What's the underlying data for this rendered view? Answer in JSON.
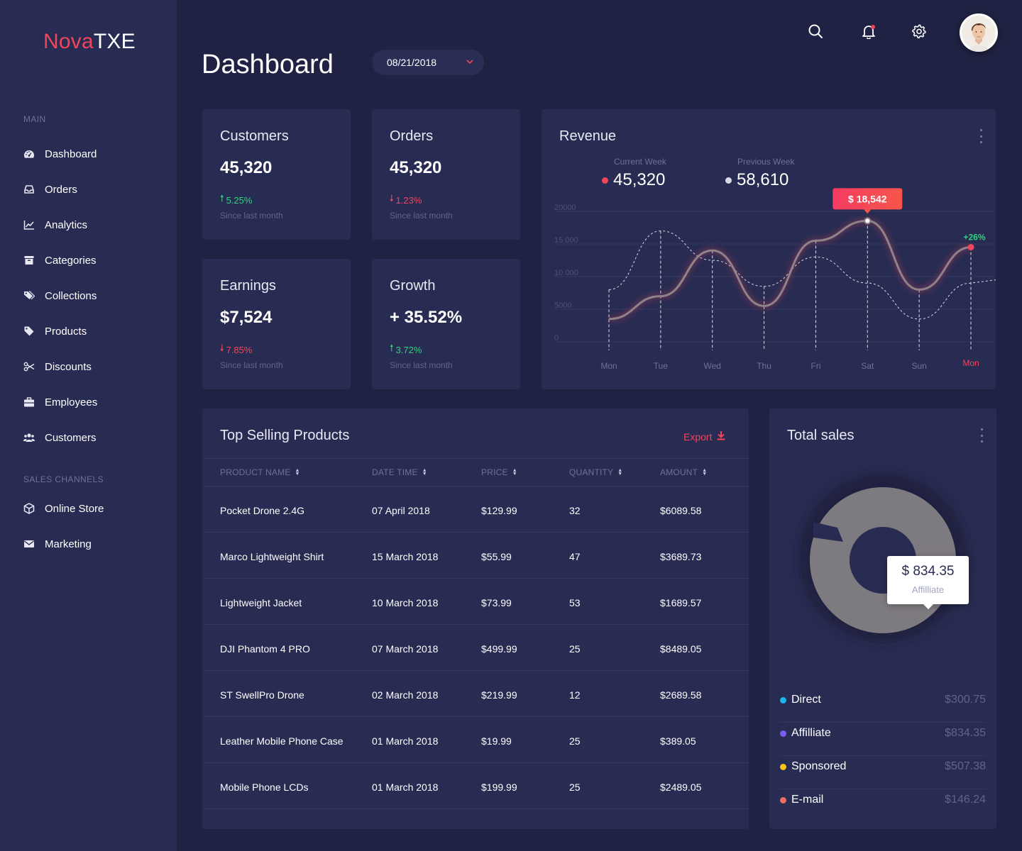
{
  "brand": {
    "part1": "Nova",
    "part2": "TXE"
  },
  "sidebar": {
    "main_label": "MAIN",
    "items": [
      {
        "label": "Dashboard",
        "icon": "dashboard-icon"
      },
      {
        "label": "Orders",
        "icon": "inbox-icon"
      },
      {
        "label": "Analytics",
        "icon": "line-chart-icon"
      },
      {
        "label": "Categories",
        "icon": "archive-icon"
      },
      {
        "label": "Collections",
        "icon": "tags-icon"
      },
      {
        "label": "Products",
        "icon": "tag-icon"
      },
      {
        "label": "Discounts",
        "icon": "scissors-icon"
      },
      {
        "label": "Employees",
        "icon": "briefcase-icon"
      },
      {
        "label": "Customers",
        "icon": "users-icon"
      }
    ],
    "channels_label": "SALES CHANNELS",
    "channels": [
      {
        "label": "Online Store",
        "icon": "cube-icon"
      },
      {
        "label": "Marketing",
        "icon": "envelope-icon"
      }
    ]
  },
  "header": {
    "title": "Dashboard",
    "date": "08/21/2018"
  },
  "stats": [
    {
      "title": "Customers",
      "value": "45,320",
      "delta": "5.25%",
      "direction": "up",
      "sub": "Since last month"
    },
    {
      "title": "Orders",
      "value": "45,320",
      "delta": "1.23%",
      "direction": "down",
      "sub": "Since last month"
    },
    {
      "title": "Earnings",
      "value": "$7,524",
      "delta": "7.85%",
      "direction": "down",
      "sub": "Since last month"
    },
    {
      "title": "Growth",
      "value": "+ 35.52%",
      "delta": "3.72%",
      "direction": "up",
      "sub": "Since last month"
    }
  ],
  "revenue": {
    "title": "Revenue",
    "current_label": "Current Week",
    "current_value": "45,320",
    "previous_label": "Previous Week",
    "previous_value": "58,610",
    "tooltip": "$ 18,542",
    "growth_label": "+26%",
    "colors": {
      "current": "#f2455a",
      "previous": "#d9dae6",
      "tooltip": "#f2455a"
    }
  },
  "chart_data": {
    "type": "line",
    "x": [
      "Mon",
      "Tue",
      "Wed",
      "Thu",
      "Fri",
      "Sat",
      "Sun",
      "Mon"
    ],
    "y_ticks": [
      "20000",
      "15 000",
      "10 000",
      "5000",
      "0"
    ],
    "ylim": [
      0,
      20000
    ],
    "series": [
      {
        "name": "Current Week",
        "values": [
          3500,
          7000,
          14000,
          5500,
          15500,
          18542,
          8000,
          14500
        ]
      },
      {
        "name": "Previous Week",
        "values": [
          8000,
          17000,
          12500,
          8500,
          13000,
          9000,
          3500,
          9000
        ]
      }
    ],
    "highlight": {
      "series": 0,
      "index": 5,
      "label": "$ 18,542"
    },
    "end_label": {
      "series": 0,
      "label": "+26%"
    }
  },
  "top_products": {
    "title": "Top Selling Products",
    "export_label": "Export",
    "columns": [
      "PRODUCT NAME",
      "DATE TIME",
      "PRICE",
      "QUANTITY",
      "AMOUNT"
    ],
    "rows": [
      [
        "Pocket Drone 2.4G",
        "07 April 2018",
        "$129.99",
        "32",
        "$6089.58"
      ],
      [
        "Marco Lightweight Shirt",
        "15 March 2018",
        "$55.99",
        "47",
        "$3689.73"
      ],
      [
        "Lightweight Jacket",
        "10 March 2018",
        "$73.99",
        "53",
        "$1689.57"
      ],
      [
        "DJI Phantom 4 PRO",
        "07 March 2018",
        "$499.99",
        "25",
        "$8489.05"
      ],
      [
        "ST SwellPro Drone",
        "02 March 2018",
        "$219.99",
        "12",
        "$2689.58"
      ],
      [
        "Leather Mobile Phone Case",
        "01 March 2018",
        "$19.99",
        "25",
        "$389.05"
      ],
      [
        "Mobile Phone LCDs",
        "01 March 2018",
        "$199.99",
        "25",
        "$2489.05"
      ]
    ]
  },
  "total_sales": {
    "title": "Total sales",
    "tooltip_value": "$ 834.35",
    "tooltip_label": "Affilliate",
    "items": [
      {
        "name": "Direct",
        "amount": "$300.75",
        "color": "#19b6f0"
      },
      {
        "name": "Affilliate",
        "amount": "$834.35",
        "color": "#7b5cf5"
      },
      {
        "name": "Sponsored",
        "amount": "$507.38",
        "color": "#f5c518"
      },
      {
        "name": "E-mail",
        "amount": "$146.24",
        "color": "#f26b5e"
      }
    ]
  }
}
